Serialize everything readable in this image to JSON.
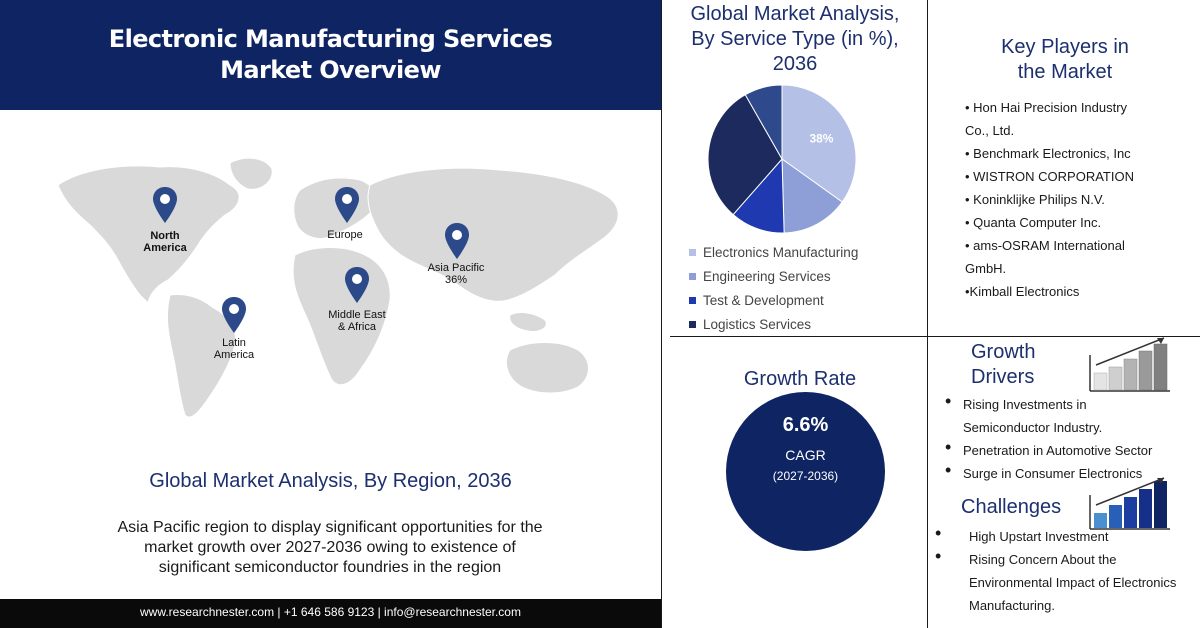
{
  "header": {
    "title_line1": "Electronic Manufacturing Services",
    "title_line2": "Market Overview"
  },
  "map": {
    "regions": [
      {
        "label_line1": "North",
        "label_line2": "America"
      },
      {
        "label_line1": "Europe",
        "label_line2": ""
      },
      {
        "label_line1": "Asia Pacific",
        "label_line2": "36%"
      },
      {
        "label_line1": "Middle East",
        "label_line2": "& Africa"
      },
      {
        "label_line1": "Latin",
        "label_line2": "America"
      }
    ],
    "pin_color": "#2c4a8a"
  },
  "region_section": {
    "title": "Global Market Analysis, By Region, 2036",
    "description_line1": "Asia Pacific  region to display significant opportunities  for the",
    "description_line2": "market growth over 2027-2036 owing to existence of",
    "description_line3": "significant semiconductor foundries in the region"
  },
  "footer": {
    "text": "www.researchnester.com  | +1 646 586 9123 | info@researchnester.com"
  },
  "service_type": {
    "title_line1": "Global Market Analysis,",
    "title_line2": "By  Service Type (in %),",
    "title_line3": "2036",
    "slice_label": "38%"
  },
  "chart_data": {
    "type": "pie",
    "categories": [
      "Electronics Manufacturing",
      "Engineering Services",
      "Test & Development",
      "Logistics Services"
    ],
    "values": [
      38,
      16,
      13,
      33
    ],
    "colors": [
      "#b4c0e6",
      "#8d9fd6",
      "#1f39b0",
      "#1c2a5e"
    ],
    "extra_slice": {
      "value": 9,
      "color": "#2e4a8c"
    },
    "title": "",
    "legend_position": "bottom"
  },
  "key_players": {
    "title_line1": "Key Players in",
    "title_line2": "the Market",
    "items": [
      "• Hon Hai Precision Industry",
      "Co., Ltd.",
      "• Benchmark Electronics, Inc",
      "• WISTRON CORPORATION",
      "• Koninklijke Philips N.V.",
      "• Quanta Computer Inc.",
      "• ams-OSRAM International",
      "GmbH.",
      "•Kimball Electronics"
    ]
  },
  "growth_rate": {
    "title": "Growth Rate",
    "value": "6.6%",
    "label": "CAGR",
    "period": "(2027-2036)"
  },
  "growth_drivers": {
    "title_line1": "Growth",
    "title_line2": "Drivers",
    "items": [
      "Rising Investments in",
      "Semiconductor Industry.",
      "Penetration in Automotive Sector",
      "Surge in Consumer Electronics"
    ]
  },
  "challenges": {
    "title": "Challenges",
    "items": [
      "High Upstart Investment",
      "Rising Concern About the",
      "Environmental Impact of Electronics",
      "Manufacturing."
    ]
  },
  "colors": {
    "navy": "#0f2463",
    "heading_blue": "#1c2f6e",
    "map_gray": "#d9d9d9"
  }
}
